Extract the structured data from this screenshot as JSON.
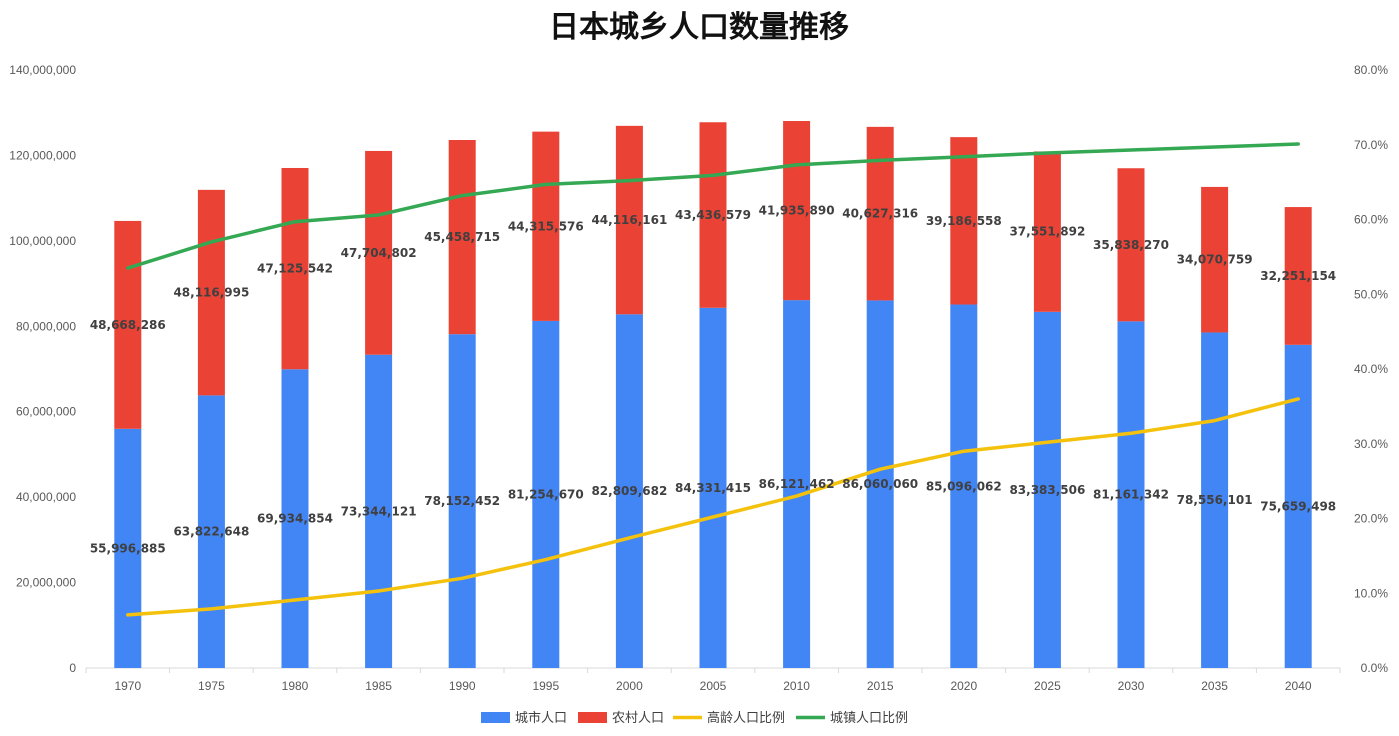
{
  "chart_data": {
    "type": "bar",
    "stacked": true,
    "title": "日本城乡人口数量推移",
    "categories": [
      "1970",
      "1975",
      "1980",
      "1985",
      "1990",
      "1995",
      "2000",
      "2005",
      "2010",
      "2015",
      "2020",
      "2025",
      "2030",
      "2035",
      "2040"
    ],
    "series": [
      {
        "name": "城市人口",
        "type": "bar",
        "axis": "left",
        "color": "#4285F4",
        "values": [
          55996885,
          63822648,
          69934854,
          73344121,
          78152452,
          81254670,
          82809682,
          84331415,
          86121462,
          86060060,
          85096062,
          83383506,
          81161342,
          78556101,
          75659498
        ],
        "labels": [
          "55,996,885",
          "63,822,648",
          "69,934,854",
          "73,344,121",
          "78,152,452",
          "81,254,670",
          "82,809,682",
          "84,331,415",
          "86,121,462",
          "86,060,060",
          "85,096,062",
          "83,383,506",
          "81,161,342",
          "78,556,101",
          "75,659,498"
        ]
      },
      {
        "name": "农村人口",
        "type": "bar",
        "axis": "left",
        "color": "#EA4335",
        "values": [
          48668286,
          48116995,
          47125542,
          47704802,
          45458715,
          44315576,
          44116161,
          43436579,
          41935890,
          40627316,
          39186558,
          37551892,
          35838270,
          34070759,
          32251154
        ],
        "labels": [
          "48,668,286",
          "48,116,995",
          "47,125,542",
          "47,704,802",
          "45,458,715",
          "44,315,576",
          "44,116,161",
          "43,436,579",
          "41,935,890",
          "40,627,316",
          "39,186,558",
          "37,551,892",
          "35,838,270",
          "34,070,759",
          "32,251,154"
        ]
      },
      {
        "name": "高龄人口比例",
        "type": "line",
        "axis": "right",
        "color": "#F4C20D",
        "values": [
          0.071,
          0.079,
          0.091,
          0.103,
          0.12,
          0.145,
          0.174,
          0.202,
          0.23,
          0.266,
          0.29,
          0.302,
          0.314,
          0.331,
          0.36
        ]
      },
      {
        "name": "城镇人口比例",
        "type": "line",
        "axis": "right",
        "color": "#34A853",
        "values": [
          0.535,
          0.57,
          0.597,
          0.606,
          0.632,
          0.647,
          0.652,
          0.659,
          0.673,
          0.679,
          0.684,
          0.689,
          0.693,
          0.697,
          0.701
        ]
      }
    ],
    "y_left": {
      "ylim": [
        0,
        140000000
      ],
      "ticks": [
        "0",
        "20,000,000",
        "40,000,000",
        "60,000,000",
        "80,000,000",
        "100,000,000",
        "120,000,000",
        "140,000,000"
      ]
    },
    "y_right": {
      "ylim": [
        0,
        0.8
      ],
      "ticks": [
        "0.0%",
        "10.0%",
        "20.0%",
        "30.0%",
        "40.0%",
        "50.0%",
        "60.0%",
        "70.0%",
        "80.0%"
      ]
    },
    "grid": false,
    "legend_position": "bottom"
  }
}
